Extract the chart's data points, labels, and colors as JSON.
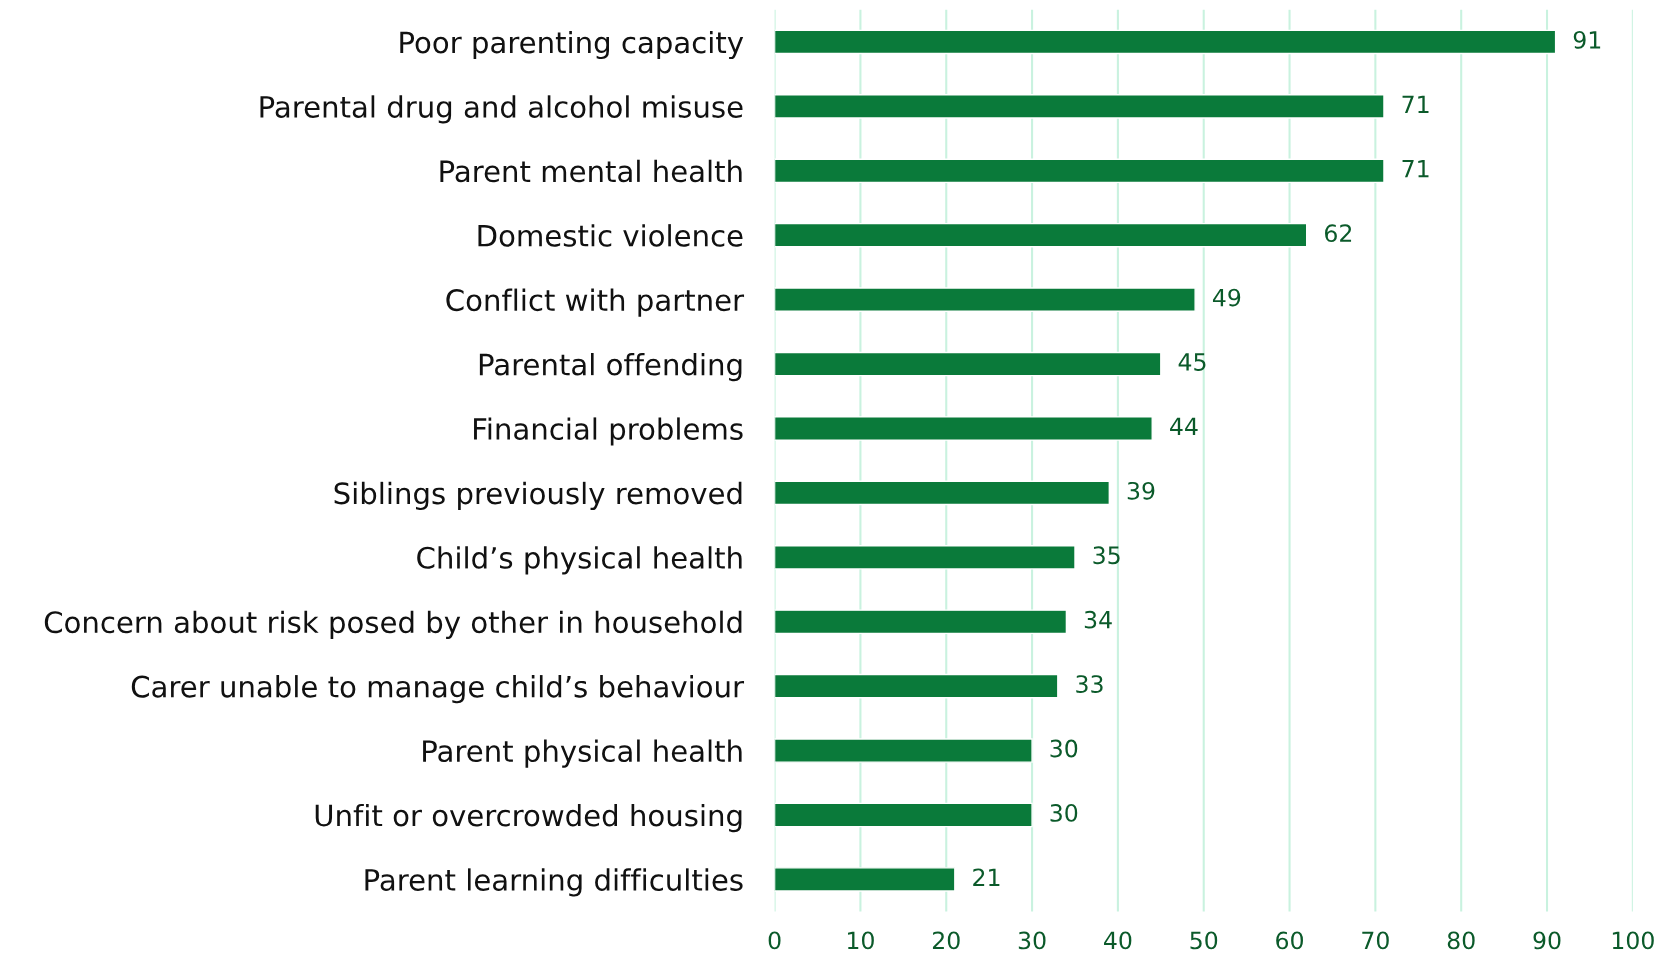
{
  "chart_data": {
    "type": "bar",
    "orientation": "horizontal",
    "categories": [
      "Poor parenting capacity",
      "Parental drug and alcohol misuse",
      "Parent mental health",
      "Domestic violence",
      "Conflict with partner",
      "Parental offending",
      "Financial problems",
      "Siblings previously removed",
      "Child’s physical health",
      "Concern about risk posed by other in household",
      "Carer unable to manage child’s behaviour",
      "Parent physical health",
      "Unfit or overcrowded housing",
      "Parent learning difficulties"
    ],
    "values": [
      91,
      71,
      71,
      62,
      49,
      45,
      44,
      39,
      35,
      34,
      33,
      30,
      30,
      21
    ],
    "color": "#0a7a3a",
    "xlim": [
      0,
      100
    ],
    "xticks": [
      0,
      10,
      20,
      30,
      40,
      50,
      60,
      70,
      80,
      90,
      100
    ],
    "grid": "x",
    "data_labels": true
  }
}
